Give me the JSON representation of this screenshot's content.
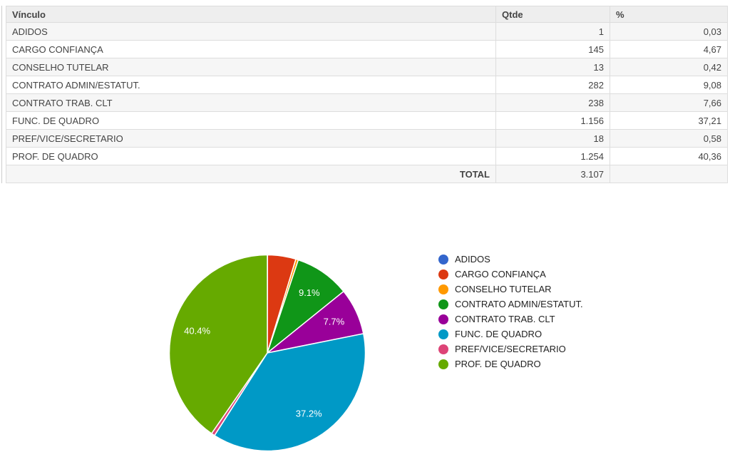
{
  "table": {
    "columns": {
      "vinculo": "Vínculo",
      "qtde": "Qtde",
      "pct": "%"
    },
    "rows": [
      {
        "vinculo": "ADIDOS",
        "qtde": "1",
        "pct": "0,03"
      },
      {
        "vinculo": "CARGO CONFIANÇA",
        "qtde": "145",
        "pct": "4,67"
      },
      {
        "vinculo": "CONSELHO TUTELAR",
        "qtde": "13",
        "pct": "0,42"
      },
      {
        "vinculo": "CONTRATO ADMIN/ESTATUT.",
        "qtde": "282",
        "pct": "9,08"
      },
      {
        "vinculo": "CONTRATO TRAB. CLT",
        "qtde": "238",
        "pct": "7,66"
      },
      {
        "vinculo": "FUNC. DE QUADRO",
        "qtde": "1.156",
        "pct": "37,21"
      },
      {
        "vinculo": "PREF/VICE/SECRETARIO",
        "qtde": "18",
        "pct": "0,58"
      },
      {
        "vinculo": "PROF. DE QUADRO",
        "qtde": "1.254",
        "pct": "40,36"
      }
    ],
    "total_row": {
      "label": "TOTAL",
      "qtde": "3.107",
      "pct": ""
    }
  },
  "chart_data": {
    "type": "pie",
    "title": "",
    "legend_position": "right",
    "slice_label_color": "#ffffff",
    "total": 3107,
    "series": [
      {
        "label": "ADIDOS",
        "value": 1,
        "pct": 0.03,
        "slice_label": "",
        "color": "#3366CC"
      },
      {
        "label": "CARGO CONFIANÇA",
        "value": 145,
        "pct": 4.67,
        "slice_label": "",
        "color": "#DC3912"
      },
      {
        "label": "CONSELHO TUTELAR",
        "value": 13,
        "pct": 0.42,
        "slice_label": "",
        "color": "#FF9900"
      },
      {
        "label": "CONTRATO ADMIN/ESTATUT.",
        "value": 282,
        "pct": 9.08,
        "slice_label": "9.1%",
        "color": "#109618"
      },
      {
        "label": "CONTRATO TRAB. CLT",
        "value": 238,
        "pct": 7.66,
        "slice_label": "7.7%",
        "color": "#990099"
      },
      {
        "label": "FUNC. DE QUADRO",
        "value": 1156,
        "pct": 37.21,
        "slice_label": "37.2%",
        "color": "#0099C6"
      },
      {
        "label": "PREF/VICE/SECRETARIO",
        "value": 18,
        "pct": 0.58,
        "slice_label": "",
        "color": "#DD4477"
      },
      {
        "label": "PROF. DE QUADRO",
        "value": 1254,
        "pct": 40.36,
        "slice_label": "40.4%",
        "color": "#66AA00"
      }
    ]
  }
}
